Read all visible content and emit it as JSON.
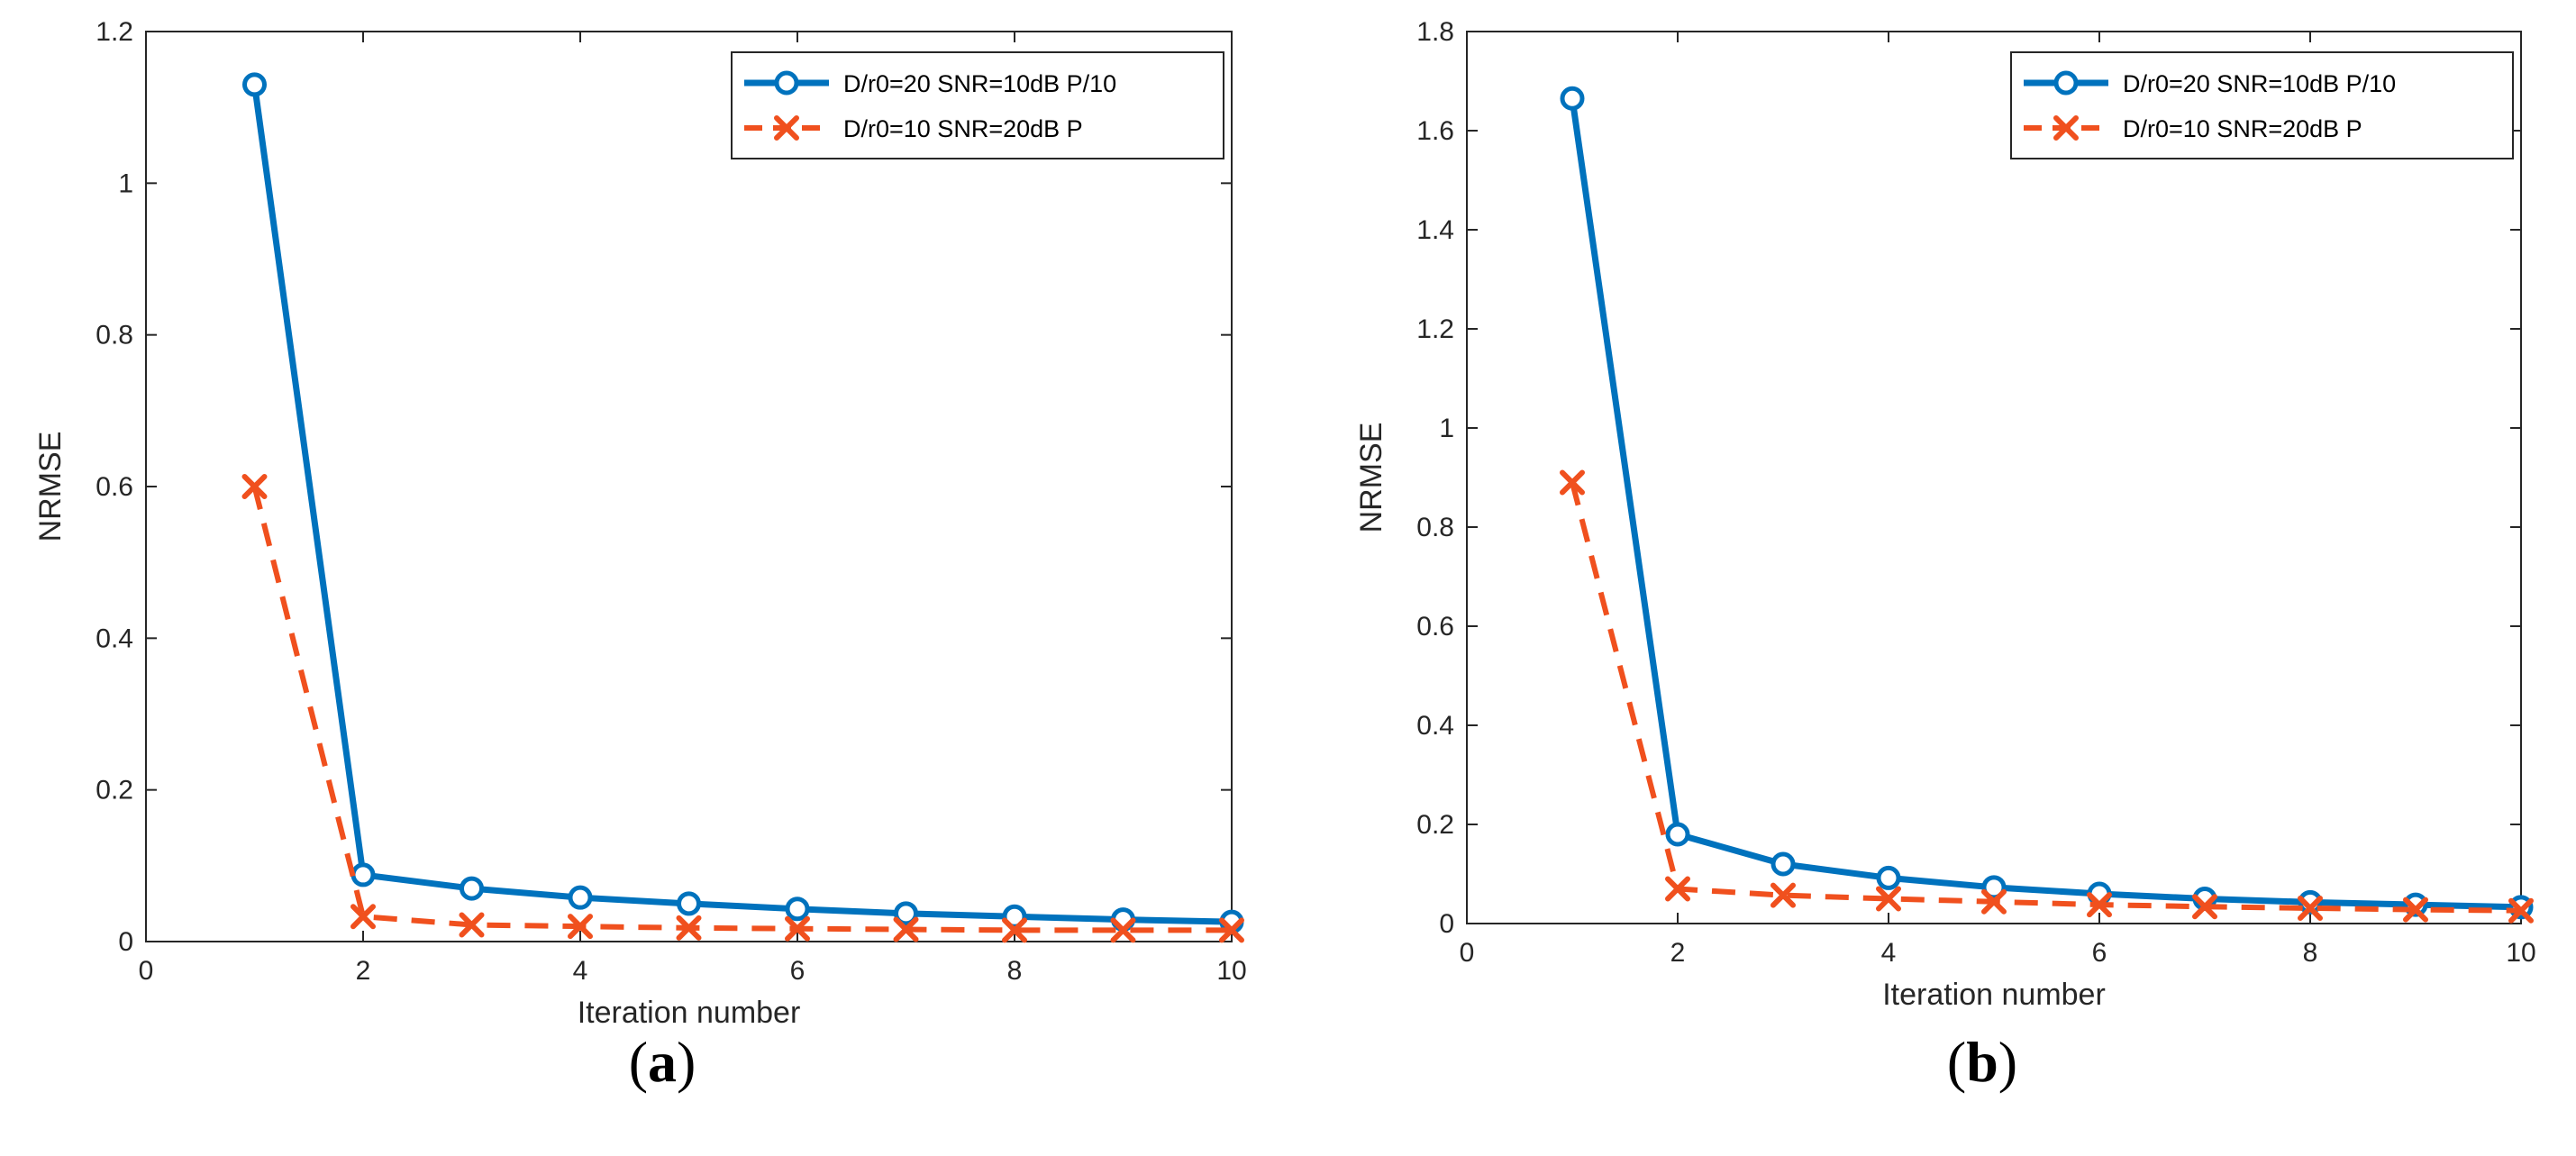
{
  "colors": {
    "series1": "#0072BD",
    "series2": "#F0501E",
    "axis": "#262626"
  },
  "chart_data": [
    {
      "type": "line",
      "panel_label": {
        "open": "(",
        "letter": "a",
        "close": ")"
      },
      "xlabel": "Iteration number",
      "ylabel": "NRMSE",
      "xlim": [
        0,
        10
      ],
      "ylim": [
        0,
        1.2
      ],
      "xticks": [
        0,
        2,
        4,
        6,
        8,
        10
      ],
      "xtick_labels": [
        "0",
        "2",
        "4",
        "6",
        "8",
        "10"
      ],
      "yticks": [
        0,
        0.2,
        0.4,
        0.6,
        0.8,
        1,
        1.2
      ],
      "ytick_labels": [
        "0",
        "0.2",
        "0.4",
        "0.6",
        "0.8",
        "1",
        "1.2"
      ],
      "legend_position": "top-right",
      "x": [
        1,
        2,
        3,
        4,
        5,
        6,
        7,
        8,
        9,
        10
      ],
      "series": [
        {
          "name": "D/r0=20 SNR=10dB P/10",
          "style": "solid",
          "marker": "circle",
          "values": [
            1.13,
            0.088,
            0.07,
            0.058,
            0.05,
            0.043,
            0.037,
            0.033,
            0.029,
            0.026
          ]
        },
        {
          "name": "D/r0=10 SNR=20dB P",
          "style": "dashed",
          "marker": "x",
          "values": [
            0.6,
            0.033,
            0.022,
            0.02,
            0.018,
            0.017,
            0.016,
            0.015,
            0.015,
            0.015
          ]
        }
      ]
    },
    {
      "type": "line",
      "panel_label": {
        "open": "(",
        "letter": "b",
        "close": ")"
      },
      "xlabel": "Iteration number",
      "ylabel": "NRMSE",
      "xlim": [
        0,
        10
      ],
      "ylim": [
        0,
        1.8
      ],
      "xticks": [
        0,
        2,
        4,
        6,
        8,
        10
      ],
      "xtick_labels": [
        "0",
        "2",
        "4",
        "6",
        "8",
        "10"
      ],
      "yticks": [
        0,
        0.2,
        0.4,
        0.6,
        0.8,
        1,
        1.2,
        1.4,
        1.6,
        1.8
      ],
      "ytick_labels": [
        "0",
        "0.2",
        "0.4",
        "0.6",
        "0.8",
        "1",
        "1.2",
        "1.4",
        "1.6",
        "1.8"
      ],
      "legend_position": "top-right",
      "x": [
        1,
        2,
        3,
        4,
        5,
        6,
        7,
        8,
        9,
        10
      ],
      "series": [
        {
          "name": "D/r0=20 SNR=10dB P/10",
          "style": "solid",
          "marker": "circle",
          "values": [
            1.665,
            0.18,
            0.12,
            0.092,
            0.073,
            0.06,
            0.05,
            0.043,
            0.038,
            0.033
          ]
        },
        {
          "name": "D/r0=10 SNR=20dB P",
          "style": "dashed",
          "marker": "x",
          "values": [
            0.89,
            0.07,
            0.057,
            0.05,
            0.044,
            0.038,
            0.034,
            0.031,
            0.028,
            0.026
          ]
        }
      ]
    }
  ]
}
